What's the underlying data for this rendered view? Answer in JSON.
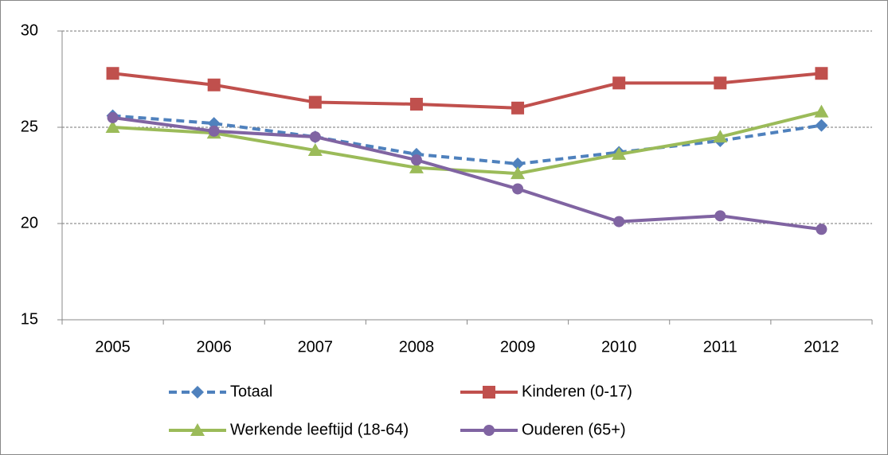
{
  "chart_data": {
    "type": "line",
    "categories": [
      "2005",
      "2006",
      "2007",
      "2008",
      "2009",
      "2010",
      "2011",
      "2012"
    ],
    "series": [
      {
        "name": "Totaal",
        "color": "#4f81bd",
        "dash": true,
        "marker": "diamond",
        "values": [
          25.6,
          25.2,
          24.5,
          23.6,
          23.1,
          23.7,
          24.3,
          25.1
        ]
      },
      {
        "name": "Kinderen (0-17)",
        "color": "#c0504d",
        "dash": false,
        "marker": "square",
        "values": [
          27.8,
          27.2,
          26.3,
          26.2,
          26.0,
          27.3,
          27.3,
          27.8
        ]
      },
      {
        "name": "Werkende leeftijd (18-64)",
        "color": "#9bbb59",
        "dash": false,
        "marker": "triangle",
        "values": [
          25.0,
          24.7,
          23.8,
          22.9,
          22.6,
          23.6,
          24.5,
          25.8
        ]
      },
      {
        "name": "Ouderen (65+)",
        "color": "#8064a2",
        "dash": false,
        "marker": "circle",
        "values": [
          25.5,
          24.8,
          24.5,
          23.3,
          21.8,
          20.1,
          20.4,
          19.7
        ]
      }
    ],
    "ylim": [
      15,
      30
    ],
    "yticks": [
      15,
      20,
      25,
      30
    ],
    "grid": true
  }
}
